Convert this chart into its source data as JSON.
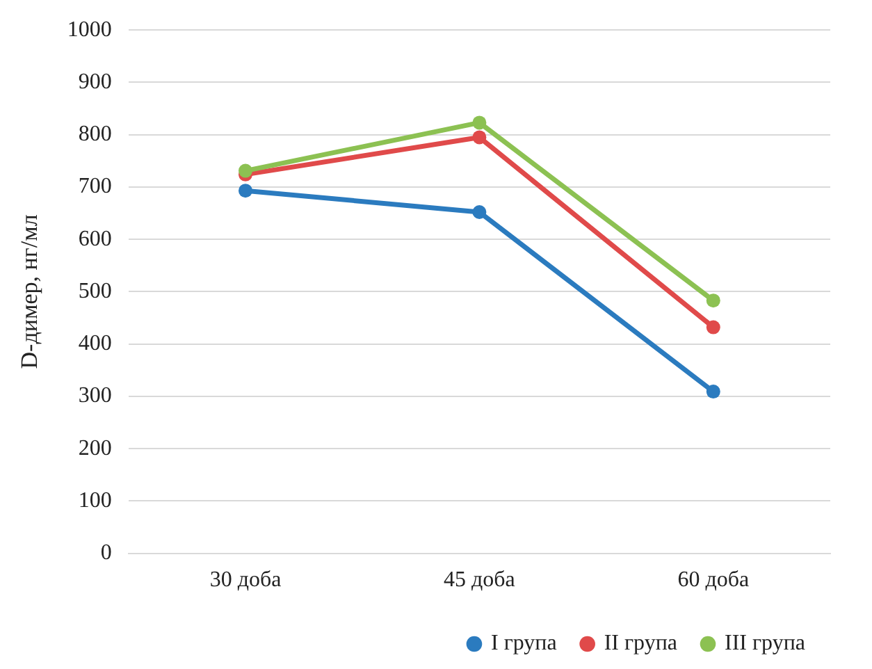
{
  "chart_data": {
    "type": "line",
    "ylabel": "D-димер, нг/мл",
    "categories": [
      "30 доба",
      "45 доба",
      "60 доба"
    ],
    "series": [
      {
        "name": "I група",
        "color": "#2b7bbf",
        "values": [
          693,
          652,
          309
        ]
      },
      {
        "name": "II група",
        "color": "#e04a4a",
        "values": [
          724,
          795,
          432
        ]
      },
      {
        "name": "III група",
        "color": "#8cc152",
        "values": [
          731,
          823,
          483
        ]
      }
    ],
    "ylim": [
      0,
      1000
    ],
    "yticks": [
      0,
      100,
      200,
      300,
      400,
      500,
      600,
      700,
      800,
      900,
      1000
    ],
    "grid": "y",
    "legend": "bottom",
    "marker": "circle",
    "line_style": "solid"
  }
}
